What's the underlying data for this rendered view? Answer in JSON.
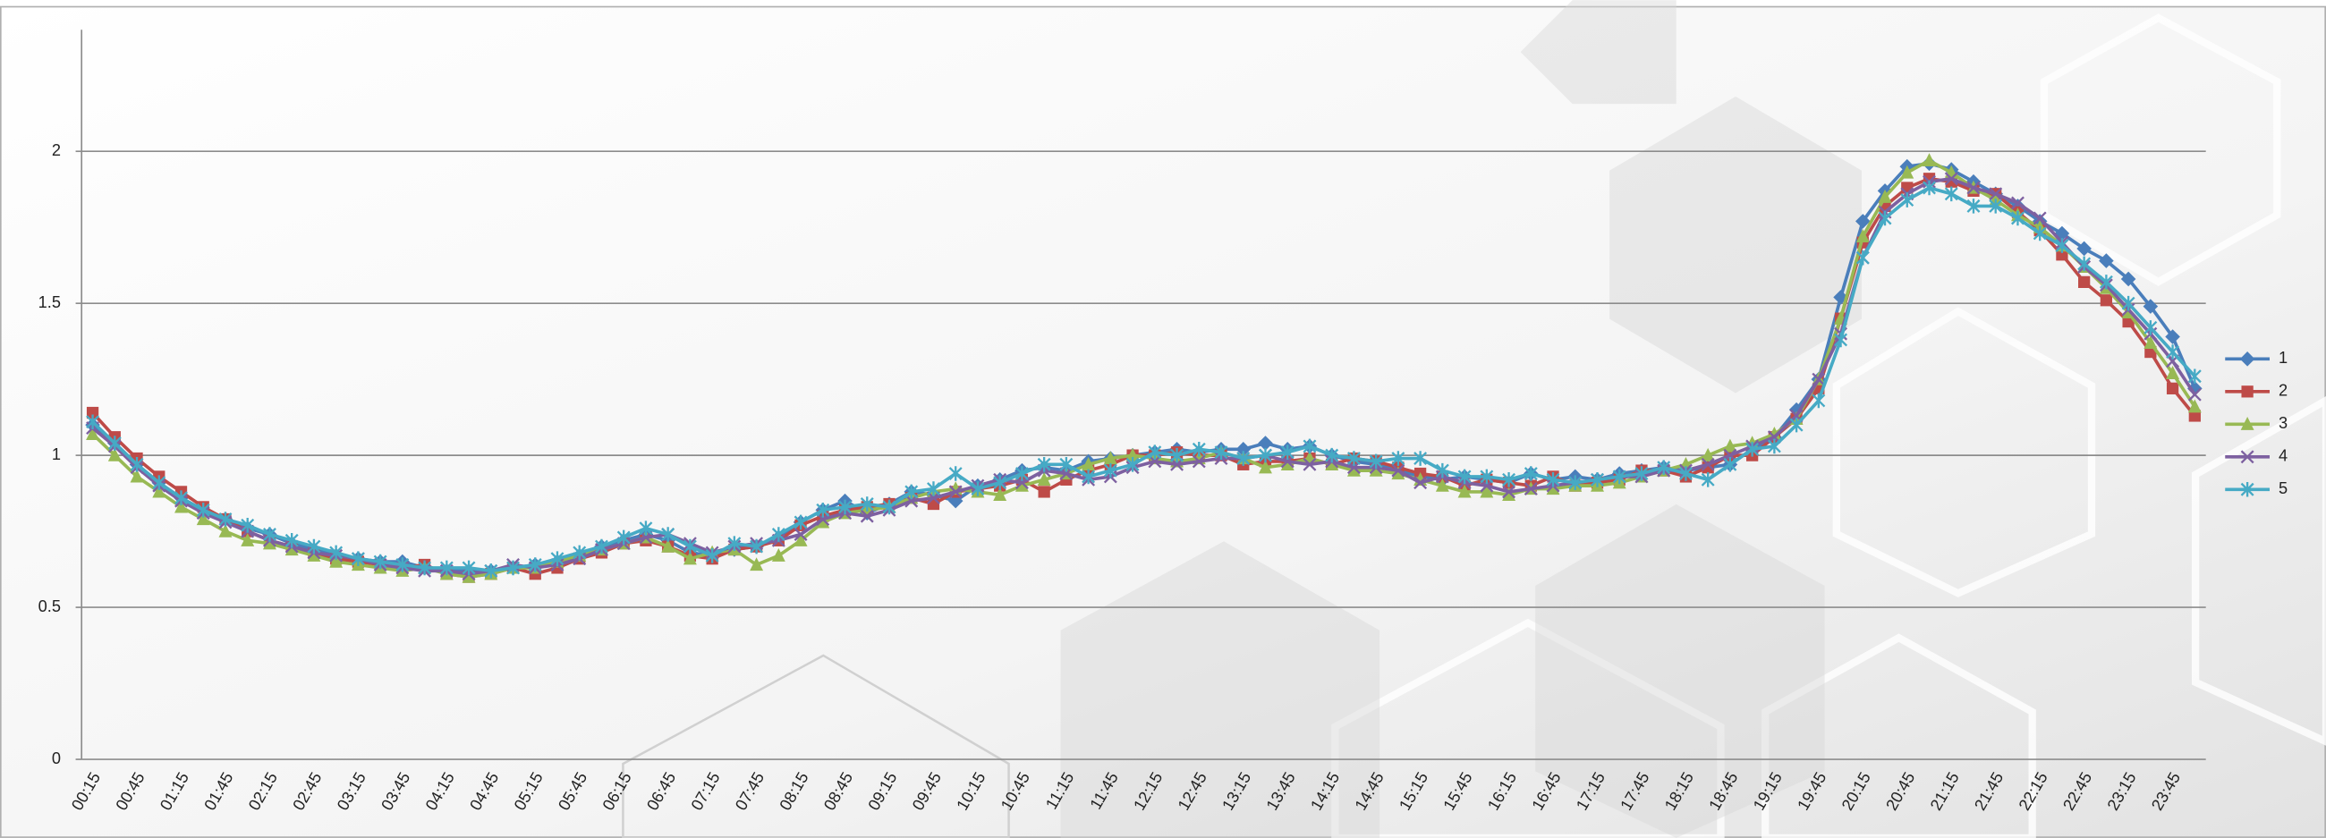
{
  "chart_data": {
    "type": "line",
    "categories": [
      "00:15",
      null,
      "00:45",
      null,
      "01:15",
      null,
      "01:45",
      null,
      "02:15",
      null,
      "02:45",
      null,
      "03:15",
      null,
      "03:45",
      null,
      "04:15",
      null,
      "04:45",
      null,
      "05:15",
      null,
      "05:45",
      null,
      "06:15",
      null,
      "06:45",
      null,
      "07:15",
      null,
      "07:45",
      null,
      "08:15",
      null,
      "08:45",
      null,
      "09:15",
      null,
      "09:45",
      null,
      "10:15",
      null,
      "10:45",
      null,
      "11:15",
      null,
      "11:45",
      null,
      "12:15",
      null,
      "12:45",
      null,
      "13:15",
      null,
      "13:45",
      null,
      "14:15",
      null,
      "14:45",
      null,
      "15:15",
      null,
      "15:45",
      null,
      "16:15",
      null,
      "16:45",
      null,
      "17:15",
      null,
      "17:45",
      null,
      "18:15",
      null,
      "18:45",
      null,
      "19:15",
      null,
      "19:45",
      null,
      "20:15",
      null,
      "20:45",
      null,
      "21:15",
      null,
      "21:45",
      null,
      "22:15",
      null,
      "22:45",
      null,
      "23:15",
      null,
      "23:45",
      null
    ],
    "ylim": [
      0,
      2.4
    ],
    "yticks": [
      0,
      0.5,
      1,
      1.5,
      2
    ],
    "grid": true,
    "legend": "right",
    "series": [
      {
        "name": "1",
        "color": "#4a7ebb",
        "values": [
          1.1,
          1.04,
          0.97,
          0.91,
          0.86,
          0.82,
          0.79,
          0.76,
          0.74,
          0.71,
          0.69,
          0.67,
          0.66,
          0.65,
          0.65,
          0.63,
          0.62,
          0.62,
          0.62,
          0.63,
          0.64,
          0.65,
          0.67,
          0.7,
          0.72,
          0.74,
          0.72,
          0.68,
          0.67,
          0.69,
          0.7,
          0.73,
          0.78,
          0.82,
          0.85,
          0.81,
          0.84,
          0.88,
          0.87,
          0.85,
          0.9,
          0.92,
          0.95,
          0.96,
          0.95,
          0.98,
          0.99,
          1.0,
          1.01,
          1.02,
          1.01,
          1.02,
          1.02,
          1.04,
          1.02,
          1.03,
          1.0,
          0.98,
          0.97,
          0.95,
          0.93,
          0.92,
          0.93,
          0.92,
          0.91,
          0.94,
          0.92,
          0.93,
          0.92,
          0.94,
          0.95,
          0.96,
          0.95,
          0.96,
          0.97,
          1.02,
          1.06,
          1.15,
          1.25,
          1.52,
          1.77,
          1.87,
          1.95,
          1.96,
          1.94,
          1.9,
          1.86,
          1.82,
          1.77,
          1.73,
          1.68,
          1.64,
          1.58,
          1.49,
          1.39,
          1.22
        ]
      },
      {
        "name": "2",
        "color": "#be4b48",
        "values": [
          1.14,
          1.06,
          0.99,
          0.93,
          0.88,
          0.83,
          0.79,
          0.75,
          0.72,
          0.7,
          0.68,
          0.66,
          0.65,
          0.64,
          0.63,
          0.64,
          0.61,
          0.6,
          0.61,
          0.63,
          0.61,
          0.63,
          0.66,
          0.68,
          0.71,
          0.72,
          0.7,
          0.67,
          0.66,
          0.69,
          0.7,
          0.72,
          0.77,
          0.8,
          0.82,
          0.83,
          0.84,
          0.86,
          0.84,
          0.88,
          0.89,
          0.9,
          0.92,
          0.88,
          0.92,
          0.95,
          0.97,
          1.0,
          1.0,
          1.01,
          1.0,
          1.0,
          0.97,
          0.98,
          0.98,
          0.99,
          0.97,
          0.99,
          0.98,
          0.96,
          0.94,
          0.93,
          0.9,
          0.92,
          0.91,
          0.9,
          0.93,
          0.9,
          0.91,
          0.92,
          0.95,
          0.95,
          0.93,
          0.96,
          1.0,
          1.0,
          1.06,
          1.12,
          1.22,
          1.45,
          1.7,
          1.82,
          1.88,
          1.91,
          1.9,
          1.87,
          1.86,
          1.8,
          1.74,
          1.66,
          1.57,
          1.51,
          1.44,
          1.34,
          1.22,
          1.13
        ]
      },
      {
        "name": "3",
        "color": "#98b954",
        "values": [
          1.07,
          1.0,
          0.93,
          0.88,
          0.83,
          0.79,
          0.75,
          0.72,
          0.71,
          0.69,
          0.67,
          0.65,
          0.64,
          0.63,
          0.62,
          0.63,
          0.61,
          0.6,
          0.61,
          0.63,
          0.63,
          0.65,
          0.67,
          0.69,
          0.71,
          0.73,
          0.7,
          0.66,
          0.68,
          0.69,
          0.64,
          0.67,
          0.72,
          0.78,
          0.81,
          0.82,
          0.83,
          0.86,
          0.88,
          0.89,
          0.88,
          0.87,
          0.9,
          0.92,
          0.94,
          0.97,
          0.99,
          1.0,
          0.99,
          0.98,
          0.99,
          1.01,
          0.99,
          0.96,
          0.97,
          0.99,
          0.97,
          0.95,
          0.95,
          0.94,
          0.92,
          0.9,
          0.88,
          0.88,
          0.87,
          0.89,
          0.89,
          0.9,
          0.9,
          0.91,
          0.93,
          0.95,
          0.97,
          1.0,
          1.03,
          1.04,
          1.07,
          1.12,
          1.25,
          1.45,
          1.72,
          1.85,
          1.93,
          1.97,
          1.93,
          1.88,
          1.84,
          1.79,
          1.75,
          1.69,
          1.62,
          1.55,
          1.47,
          1.37,
          1.27,
          1.16
        ]
      },
      {
        "name": "4",
        "color": "#7d60a0",
        "values": [
          1.09,
          1.03,
          0.96,
          0.9,
          0.85,
          0.81,
          0.78,
          0.75,
          0.72,
          0.7,
          0.68,
          0.67,
          0.66,
          0.64,
          0.63,
          0.62,
          0.62,
          0.61,
          0.62,
          0.64,
          0.63,
          0.64,
          0.66,
          0.69,
          0.71,
          0.73,
          0.74,
          0.71,
          0.68,
          0.7,
          0.71,
          0.72,
          0.74,
          0.79,
          0.81,
          0.8,
          0.82,
          0.85,
          0.86,
          0.88,
          0.9,
          0.92,
          0.91,
          0.95,
          0.94,
          0.92,
          0.93,
          0.96,
          0.98,
          0.97,
          0.98,
          0.99,
          0.99,
          1.0,
          0.98,
          0.97,
          0.98,
          0.96,
          0.96,
          0.95,
          0.91,
          0.93,
          0.91,
          0.9,
          0.88,
          0.89,
          0.9,
          0.91,
          0.92,
          0.93,
          0.93,
          0.95,
          0.95,
          0.97,
          1.0,
          1.03,
          1.06,
          1.13,
          1.25,
          1.4,
          1.65,
          1.8,
          1.86,
          1.9,
          1.91,
          1.88,
          1.86,
          1.83,
          1.78,
          1.7,
          1.62,
          1.56,
          1.48,
          1.4,
          1.31,
          1.2
        ]
      },
      {
        "name": "5",
        "color": "#46aac5",
        "values": [
          1.11,
          1.04,
          0.97,
          0.91,
          0.86,
          0.82,
          0.79,
          0.77,
          0.74,
          0.72,
          0.7,
          0.68,
          0.66,
          0.65,
          0.64,
          0.63,
          0.63,
          0.63,
          0.62,
          0.63,
          0.64,
          0.66,
          0.68,
          0.7,
          0.73,
          0.76,
          0.74,
          0.7,
          0.67,
          0.71,
          0.7,
          0.74,
          0.78,
          0.82,
          0.83,
          0.84,
          0.83,
          0.88,
          0.89,
          0.94,
          0.89,
          0.91,
          0.94,
          0.97,
          0.97,
          0.93,
          0.95,
          0.97,
          1.01,
          1.0,
          1.02,
          1.01,
          0.99,
          1.0,
          1.01,
          1.03,
          1.0,
          0.99,
          0.98,
          0.99,
          0.99,
          0.95,
          0.93,
          0.93,
          0.92,
          0.94,
          0.92,
          0.91,
          0.92,
          0.93,
          0.94,
          0.96,
          0.94,
          0.92,
          0.97,
          1.02,
          1.03,
          1.1,
          1.18,
          1.38,
          1.65,
          1.78,
          1.84,
          1.88,
          1.86,
          1.82,
          1.82,
          1.78,
          1.73,
          1.69,
          1.63,
          1.57,
          1.5,
          1.42,
          1.34,
          1.26
        ]
      }
    ]
  }
}
